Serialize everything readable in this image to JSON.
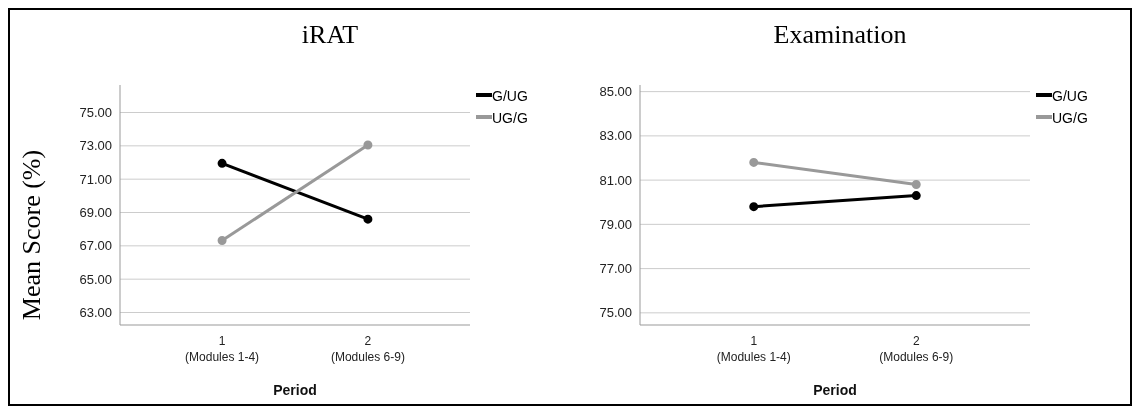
{
  "chart_data": [
    {
      "type": "line",
      "title": "iRAT",
      "xlabel": "Period",
      "ylabel": "Mean Score (%)",
      "categories": [
        "1\n(Modules 1-4)",
        "2\n(Modules 6-9)"
      ],
      "series": [
        {
          "name": "G/UG",
          "color": "#000000",
          "values": [
            71.95,
            68.6
          ]
        },
        {
          "name": "UG/G",
          "color": "#999999",
          "values": [
            67.32,
            73.05
          ]
        }
      ],
      "ylim": [
        62.25,
        76.65
      ],
      "yticks": [
        {
          "value": 63,
          "label": "63.00"
        },
        {
          "value": 65,
          "label": "65.00"
        },
        {
          "value": 67,
          "label": "67.00"
        },
        {
          "value": 69,
          "label": "69.00"
        },
        {
          "value": 71,
          "label": "71.00"
        },
        {
          "value": 73,
          "label": "73.00"
        },
        {
          "value": 75,
          "label": "75.00"
        }
      ],
      "grid": "y",
      "legend": "top right",
      "marker": "circle",
      "line_style": "solid"
    },
    {
      "type": "line",
      "title": "Examination",
      "xlabel": "Period",
      "categories": [
        "1\n(Modules 1-4)",
        "2\n(Modules 6-9)"
      ],
      "series": [
        {
          "name": "G/UG",
          "color": "#000000",
          "values": [
            79.8,
            80.3
          ]
        },
        {
          "name": "UG/G",
          "color": "#999999",
          "values": [
            81.8,
            80.8
          ]
        }
      ],
      "ylim": [
        74.45,
        85.3
      ],
      "yticks": [
        {
          "value": 75,
          "label": "75.00"
        },
        {
          "value": 77,
          "label": "77.00"
        },
        {
          "value": 79,
          "label": "79.00"
        },
        {
          "value": 81,
          "label": "81.00"
        },
        {
          "value": 83,
          "label": "83.00"
        },
        {
          "value": 85,
          "label": "85.00"
        }
      ],
      "grid": "y",
      "legend": "top right",
      "marker": "circle",
      "line_style": "solid"
    }
  ]
}
